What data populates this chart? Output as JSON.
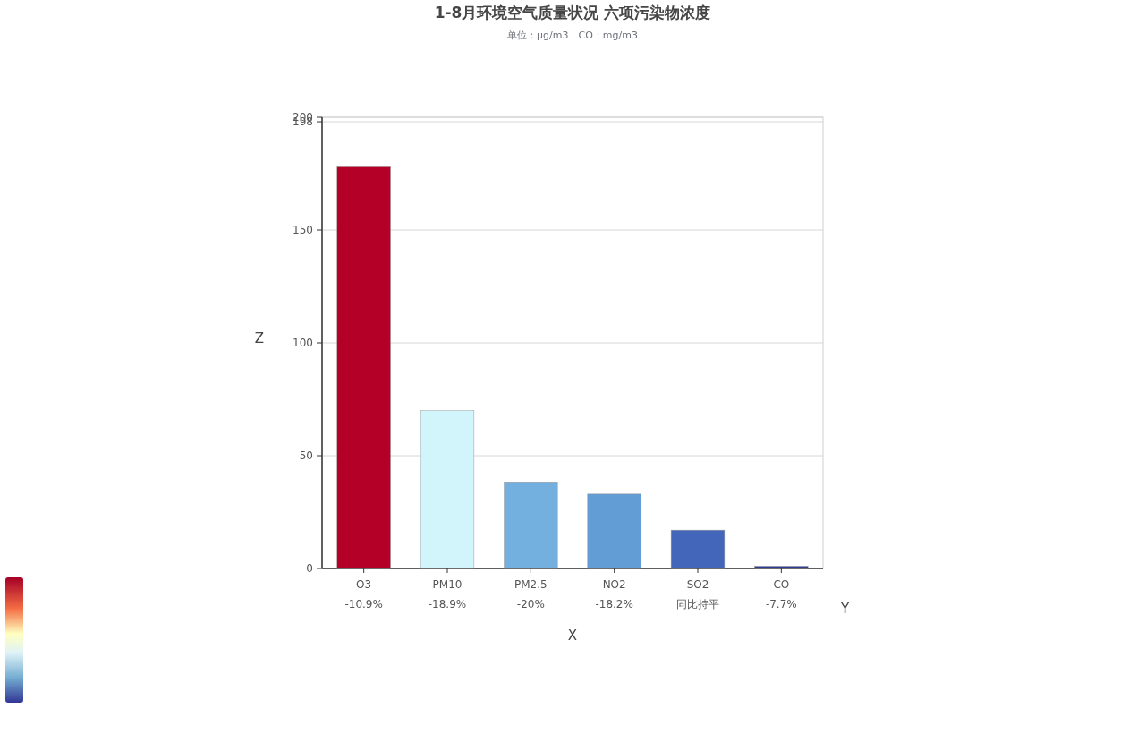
{
  "chart_data": {
    "type": "bar",
    "title": "1-8月环境空气质量状况    六项污染物浓度",
    "subtitle": "单位：μg/m3，CO：mg/m3",
    "xlabel": "X",
    "ylabel": "Z",
    "categories": [
      "O3",
      "PM10",
      "PM2.5",
      "NO2",
      "SO2",
      "CO"
    ],
    "values": [
      178,
      70,
      38,
      33,
      17,
      1
    ],
    "colors": [
      "#b40027",
      "#d1f5fb",
      "#74b0df",
      "#639dd5",
      "#4366bb",
      "#2f3e92"
    ],
    "ylim": [
      0,
      200
    ],
    "yticks": [
      0,
      50,
      100,
      150,
      198,
      200
    ],
    "grid": "y",
    "annotations": [
      "-10.9%",
      "-18.9%",
      "-20%",
      "-18.2%",
      "同比持平",
      "-7.7%",
      "Y"
    ]
  }
}
